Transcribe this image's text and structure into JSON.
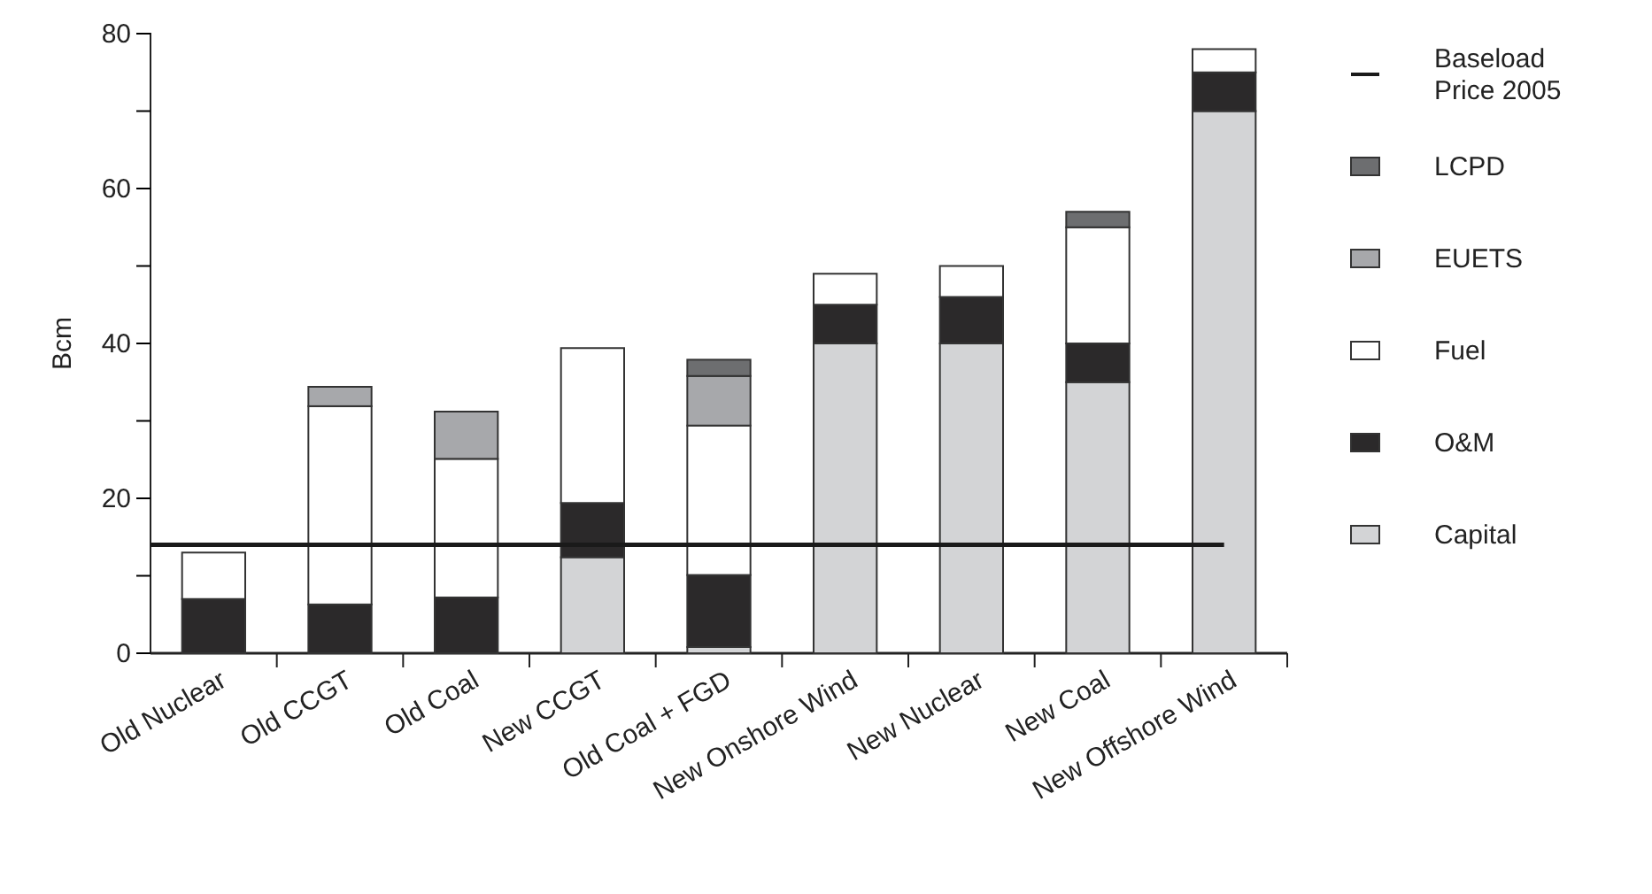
{
  "chart_data": {
    "type": "bar",
    "stacked": true,
    "ylabel": "Bcm",
    "categories": [
      "Old Nuclear",
      "Old CCGT",
      "Old Coal",
      "New CCGT",
      "Old Coal + FGD",
      "New Onshore Wind",
      "New Nuclear",
      "New Coal",
      "New Offshore Wind"
    ],
    "series": [
      {
        "name": "Capital",
        "color": "#d3d4d6",
        "values": [
          null,
          null,
          null,
          12.4,
          0.8,
          40,
          40,
          35,
          70
        ]
      },
      {
        "name": "O&M",
        "color": "#2b292a",
        "values": [
          7,
          6.3,
          7.2,
          7,
          9.3,
          5,
          6,
          5,
          5
        ]
      },
      {
        "name": "Fuel",
        "color": "#ffffff",
        "values": [
          6,
          25.6,
          17.9,
          20,
          19.3,
          4,
          4,
          15,
          3
        ]
      },
      {
        "name": "EUETS",
        "color": "#a7a8ab",
        "values": [
          null,
          2.5,
          6.1,
          null,
          6.4,
          null,
          null,
          null,
          null
        ]
      },
      {
        "name": "LCPD",
        "color": "#6d6e70",
        "values": [
          null,
          null,
          null,
          null,
          2.1,
          null,
          null,
          2,
          null
        ]
      }
    ],
    "ylim": [
      0,
      80
    ],
    "yticks": [
      0,
      {
        "value": 10,
        "label": null
      },
      20,
      {
        "value": 30,
        "label": null
      },
      40,
      {
        "value": 50,
        "label": null
      },
      60,
      {
        "value": 70,
        "label": null
      },
      80
    ],
    "ref_lines": [
      {
        "axis": "y",
        "value": 14,
        "label": "Baseload Price 2005",
        "color": "#1a1a1a"
      }
    ],
    "legend": "right"
  }
}
